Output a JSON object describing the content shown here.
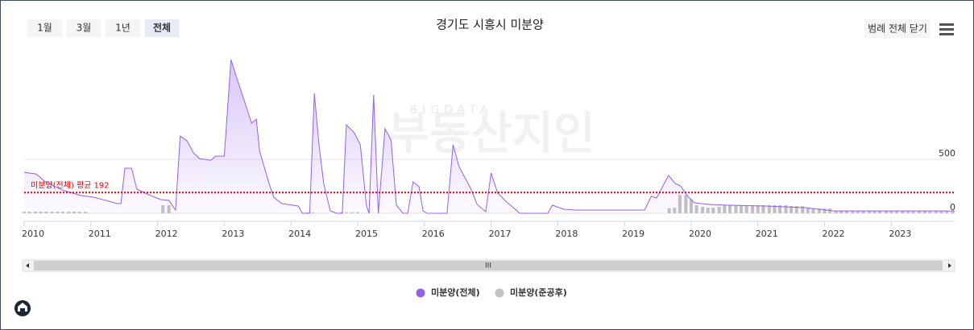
{
  "ui": {
    "range_buttons": [
      "1월",
      "3월",
      "1년",
      "전체"
    ],
    "selected_range": 3,
    "legend_toggle": "범례 전체 닫기",
    "scroll_handle": "III",
    "watermark": {
      "top": "BIGDATA",
      "main": "부동산지인"
    }
  },
  "chart_data": {
    "type": "line",
    "title": "경기도 시흥시 미분양",
    "xlim": [
      2010,
      2023.95
    ],
    "xticks": [
      2010,
      2011,
      2012,
      2013,
      2014,
      2015,
      2016,
      2017,
      2018,
      2019,
      2020,
      2021,
      2022,
      2023
    ],
    "ylim": [
      0,
      1500
    ],
    "yticks": [
      0,
      500
    ],
    "grid": true,
    "legend": "bottom",
    "average": {
      "value": 192,
      "label": "미분양(전체) 평균 192",
      "color": "#e60000"
    },
    "series": [
      {
        "name": "미분양(전체)",
        "type": "area",
        "color": "#9460e8",
        "x": [
          2010.0,
          2010.18,
          2010.3,
          2010.42,
          2010.6,
          2010.85,
          2011.03,
          2011.27,
          2011.39,
          2011.45,
          2011.51,
          2011.61,
          2011.69,
          2011.87,
          2012.05,
          2012.17,
          2012.27,
          2012.34,
          2012.44,
          2012.54,
          2012.63,
          2012.8,
          2012.87,
          2013.0,
          2013.1,
          2013.2,
          2013.32,
          2013.41,
          2013.48,
          2013.53,
          2013.66,
          2013.74,
          2013.86,
          2014.11,
          2014.17,
          2014.28,
          2014.35,
          2014.42,
          2014.49,
          2014.59,
          2014.69,
          2014.77,
          2014.83,
          2014.95,
          2015.04,
          2015.13,
          2015.17,
          2015.24,
          2015.31,
          2015.41,
          2015.5,
          2015.58,
          2015.68,
          2015.75,
          2015.83,
          2015.92,
          2015.98,
          2016.04,
          2016.34,
          2016.43,
          2016.52,
          2016.7,
          2016.79,
          2016.92,
          2017.0,
          2017.1,
          2017.22,
          2017.43,
          2017.85,
          2017.92,
          2018.09,
          2018.27,
          2018.82,
          2019.3,
          2019.4,
          2019.48,
          2019.66,
          2019.76,
          2019.84,
          2019.96,
          2020.05,
          2020.27,
          2020.51,
          2021.11,
          2021.71,
          2022.14,
          2022.92,
          2023.95
        ],
        "values": [
          380,
          365,
          300,
          260,
          210,
          165,
          150,
          112,
          90,
          90,
          418,
          418,
          224,
          172,
          127,
          120,
          30,
          716,
          672,
          560,
          507,
          492,
          530,
          530,
          1425,
          1231,
          1007,
          836,
          873,
          575,
          300,
          150,
          90,
          67,
          0,
          0,
          1112,
          634,
          276,
          22,
          0,
          0,
          821,
          746,
          634,
          75,
          0,
          1097,
          0,
          784,
          679,
          75,
          0,
          0,
          291,
          246,
          22,
          0,
          0,
          634,
          433,
          224,
          82,
          15,
          373,
          187,
          112,
          0,
          0,
          75,
          37,
          30,
          30,
          30,
          157,
          142,
          351,
          276,
          254,
          150,
          97,
          82,
          75,
          67,
          52,
          22,
          22,
          22
        ]
      },
      {
        "name": "미분양(준공후)",
        "type": "column",
        "color": "#c2c2c2",
        "x": [
          2010.0,
          2010.08,
          2010.17,
          2010.25,
          2010.33,
          2010.42,
          2010.5,
          2010.58,
          2010.67,
          2010.75,
          2010.83,
          2010.92,
          2012.08,
          2012.17,
          2014.25,
          2014.33,
          2014.75,
          2014.83,
          2014.92,
          2015.0,
          2019.67,
          2019.75,
          2019.83,
          2019.92,
          2020.0,
          2020.08,
          2020.17,
          2020.25,
          2020.33,
          2020.42,
          2020.5,
          2020.58,
          2020.67,
          2020.75,
          2020.83,
          2020.92,
          2021.0,
          2021.08,
          2021.17,
          2021.25,
          2021.33,
          2021.42,
          2021.5,
          2021.58,
          2021.67,
          2021.75,
          2021.83,
          2021.92,
          2022.0,
          2022.08,
          2022.17,
          2022.25,
          2022.33,
          2022.42,
          2022.5,
          2022.58,
          2022.67,
          2022.75,
          2022.83,
          2022.92,
          2023.0,
          2023.08,
          2023.17,
          2023.25,
          2023.33,
          2023.42,
          2023.5,
          2023.58,
          2023.67,
          2023.75,
          2023.83,
          2023.92
        ],
        "values": [
          15,
          15,
          15,
          15,
          15,
          15,
          15,
          15,
          15,
          15,
          15,
          15,
          75,
          75,
          8,
          8,
          10,
          10,
          10,
          10,
          45,
          52,
          170,
          170,
          130,
          75,
          60,
          52,
          52,
          60,
          75,
          75,
          75,
          75,
          75,
          75,
          75,
          75,
          75,
          75,
          75,
          75,
          67,
          67,
          67,
          45,
          45,
          45,
          45,
          45,
          22,
          22,
          22,
          22,
          22,
          22,
          22,
          22,
          22,
          22,
          22,
          22,
          22,
          22,
          22,
          22,
          22,
          22,
          22,
          22,
          22,
          22
        ]
      }
    ]
  }
}
